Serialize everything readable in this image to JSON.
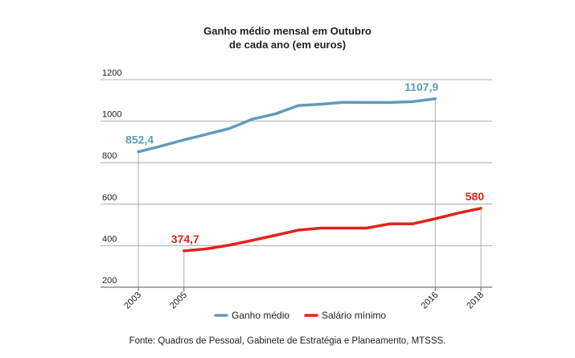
{
  "chart_data": {
    "type": "line",
    "title": "Ganho médio mensal em Outubro",
    "subtitle": "de cada ano (em euros)",
    "ylim": [
      200,
      1200
    ],
    "y_ticks": [
      1200,
      1000,
      800,
      600,
      400,
      200
    ],
    "x_ticks": [
      2003,
      2005,
      2016,
      2018
    ],
    "xlim": [
      2003,
      2018
    ],
    "grid": true,
    "legend_position": "bottom-center",
    "series": [
      {
        "name": "Ganho médio",
        "color": "#5f9db3",
        "x": [
          2003,
          2004,
          2005,
          2006,
          2007,
          2008,
          2009,
          2010,
          2011,
          2012,
          2013,
          2014,
          2015,
          2016
        ],
        "values": [
          852.4,
          880,
          910,
          937,
          965,
          1010,
          1035,
          1075,
          1082,
          1091,
          1090,
          1090,
          1094,
          1107.9
        ],
        "annotations": [
          {
            "x": 2003,
            "y": 852.4,
            "label": "852,4"
          },
          {
            "x": 2016,
            "y": 1107.9,
            "label": "1107,9"
          }
        ]
      },
      {
        "name": "Salário mínimo",
        "color": "#e2231a",
        "x": [
          2005,
          2006,
          2007,
          2008,
          2009,
          2010,
          2011,
          2012,
          2013,
          2014,
          2015,
          2016,
          2017,
          2018
        ],
        "values": [
          374.7,
          385,
          403,
          426,
          450,
          475,
          485,
          485,
          485,
          505,
          505,
          530,
          557,
          580
        ],
        "annotations": [
          {
            "x": 2005,
            "y": 374.7,
            "label": "374,7"
          },
          {
            "x": 2018,
            "y": 580,
            "label": "580"
          }
        ]
      }
    ]
  },
  "source": "Fonte: Quadros de Pessoal, Gabinete de Estratégia e Planeamento, MTSSS."
}
